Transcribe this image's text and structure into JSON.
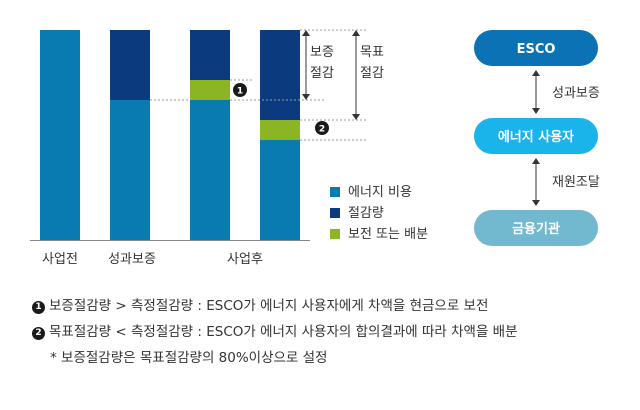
{
  "colors": {
    "energy_cost": "#0a7bb0",
    "savings": "#0b3a7e",
    "distribution": "#8cb526",
    "esco_box": "#0b72b6",
    "user_box": "#1ab3ea",
    "finance_box": "#72b9d0"
  },
  "chart": {
    "bars": [
      {
        "label": "사업전"
      },
      {
        "label": "성과보증"
      },
      {
        "label": "사업후"
      }
    ],
    "brackets": {
      "guaranteed": "보증\n절감",
      "target": "목표\n절감"
    },
    "markers": {
      "one": "1",
      "two": "2"
    },
    "legend": [
      {
        "label": "에너지 비용",
        "color_key": "energy_cost"
      },
      {
        "label": "절감량",
        "color_key": "savings"
      },
      {
        "label": "보전 또는 배분",
        "color_key": "distribution"
      }
    ]
  },
  "flow": {
    "esco": "ESCO",
    "user": "에너지 사용자",
    "finance": "금융기관",
    "link_top": "성과보증",
    "link_bottom": "재원조달"
  },
  "notes": {
    "line1_marker": "1",
    "line1": "보증절감량 > 측정절감량 : ESCO가 에너지 사용자에게 차액을 현금으로 보전",
    "line2_marker": "2",
    "line2": "목표절감량 < 측정절감량 : ESCO가 에너지 사용자의 합의결과에 따라 차액을 배분",
    "line3": "* 보증절감량은 목표절감량의 80%이상으로 설정"
  }
}
